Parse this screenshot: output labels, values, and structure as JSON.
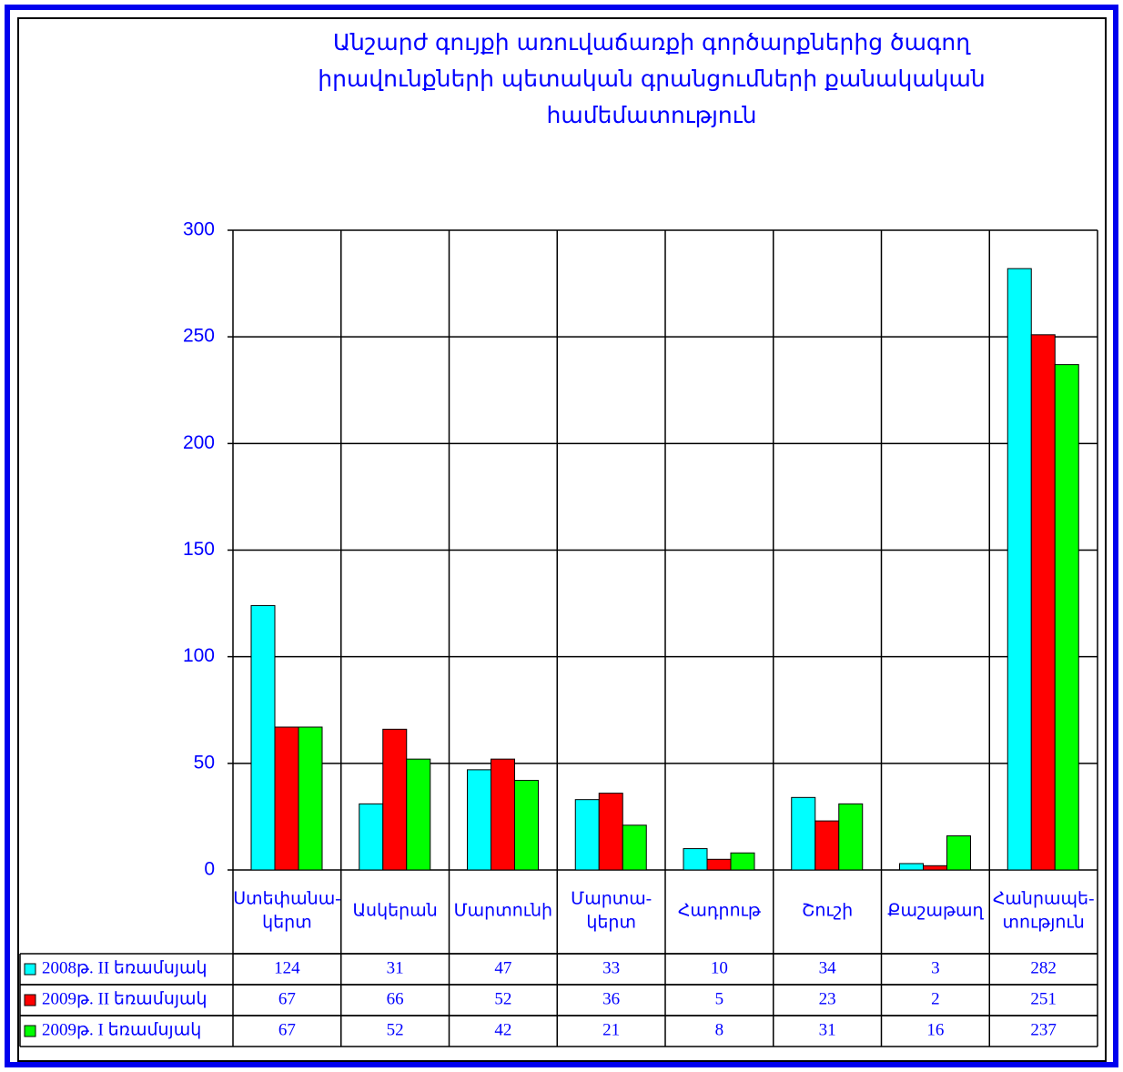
{
  "chart_data": {
    "type": "bar",
    "title": [
      "Անշարժ գույքի առուվաճառքի գործարքներից ծագող",
      "իրավունքների պետական գրանցումների քանակական",
      "համեմատություն"
    ],
    "categories": [
      [
        "Ստեփանա-",
        "կերտ"
      ],
      [
        "Ասկերան"
      ],
      [
        "Մարտունի"
      ],
      [
        "Մարտա-",
        "կերտ"
      ],
      [
        "Հադրութ"
      ],
      [
        "Շուշի"
      ],
      [
        "Քաշաթաղ"
      ],
      [
        "Հանրապե-",
        "տություն"
      ]
    ],
    "series": [
      {
        "name": "2008թ. II եռամսյակ",
        "color": "#00ffff",
        "values": [
          124,
          31,
          47,
          33,
          10,
          34,
          3,
          282
        ]
      },
      {
        "name": "2009թ. II եռամսյակ",
        "color": "#ff0000",
        "values": [
          67,
          66,
          52,
          36,
          5,
          23,
          2,
          251
        ]
      },
      {
        "name": "2009թ. I եռամսյակ",
        "color": "#00ff00",
        "values": [
          67,
          52,
          42,
          21,
          8,
          31,
          16,
          237
        ]
      }
    ],
    "ylim": [
      0,
      300
    ],
    "yticks": [
      0,
      50,
      100,
      150,
      200,
      250,
      300
    ],
    "grid": true,
    "data_table": true
  }
}
